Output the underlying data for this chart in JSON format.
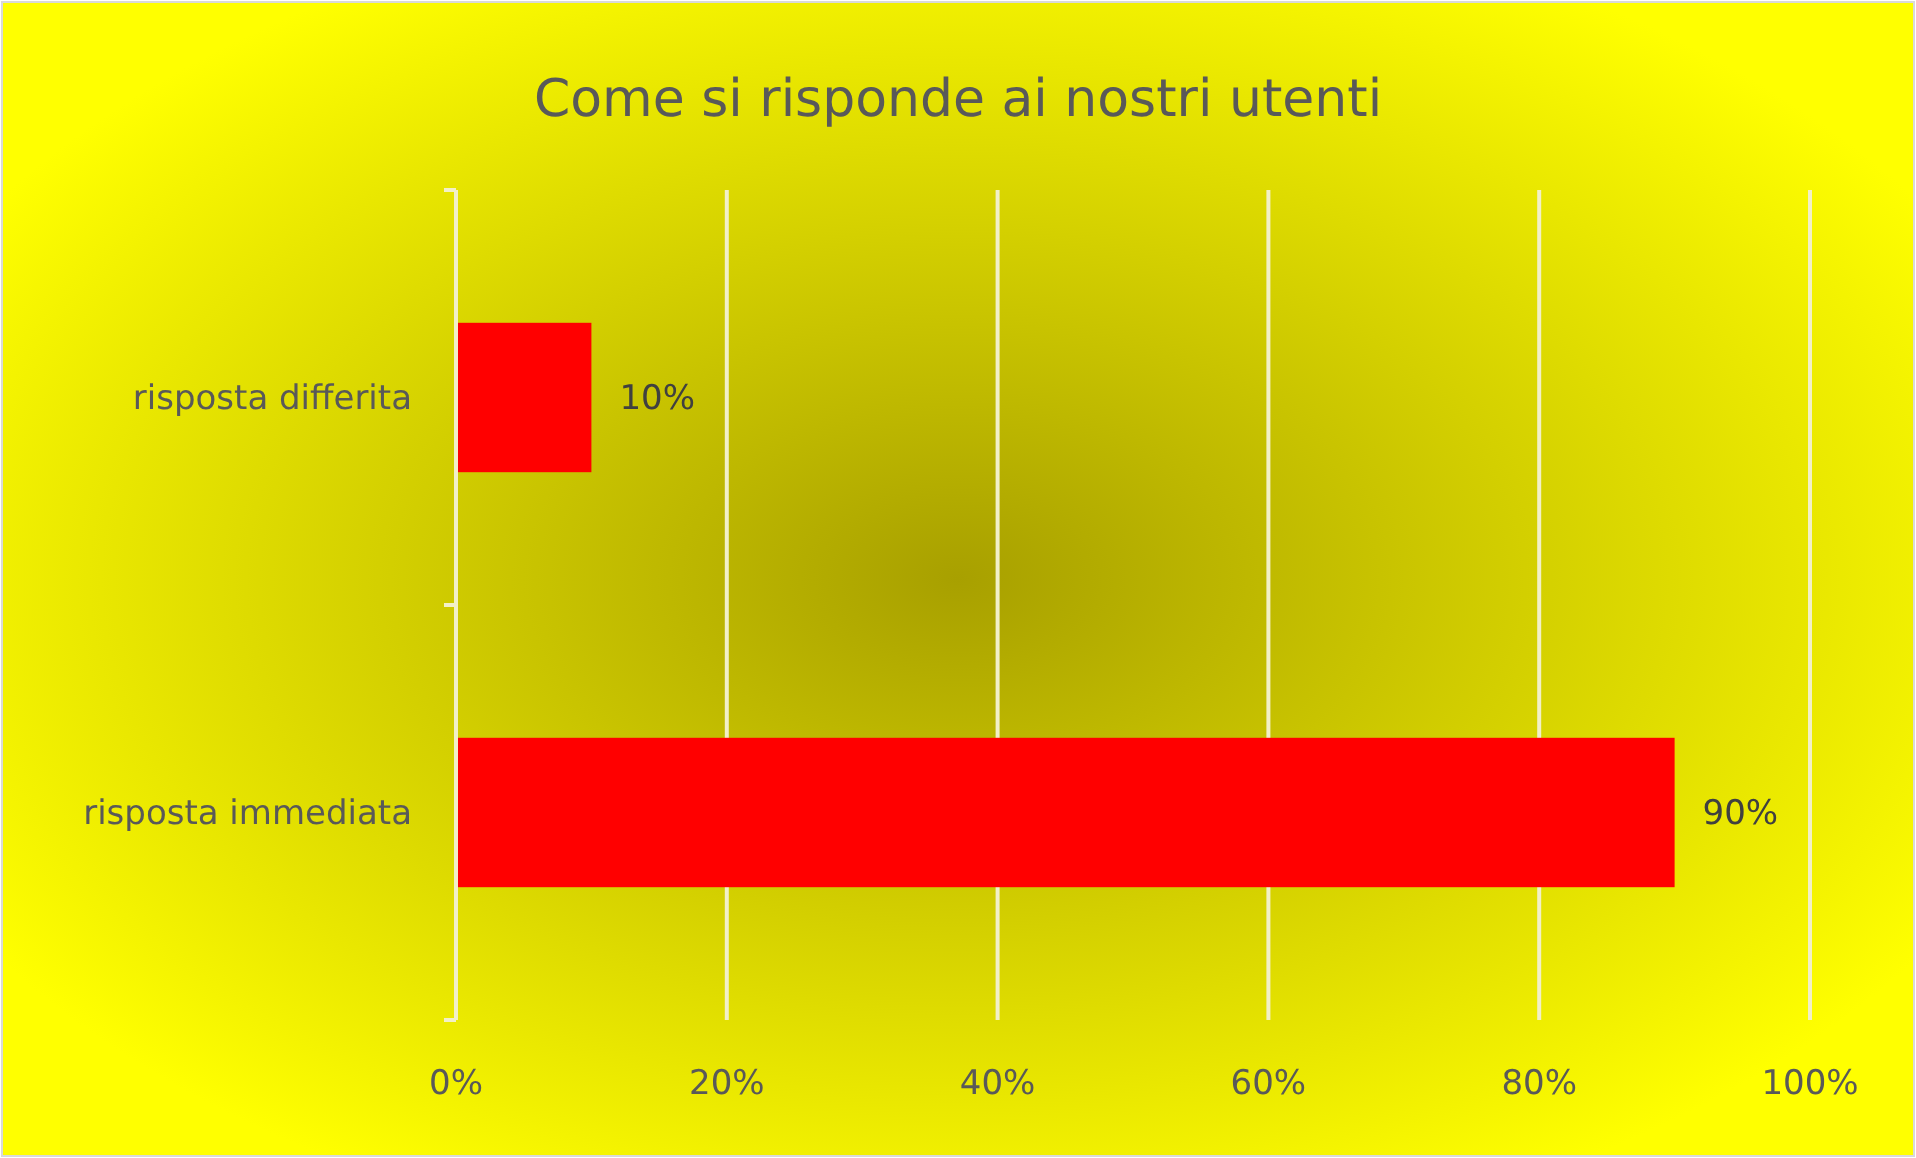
{
  "chart_data": {
    "type": "bar",
    "title": "Come si risponde ai nostri utenti",
    "orientation": "horizontal",
    "categories": [
      "risposta differita",
      "risposta immediata"
    ],
    "values": [
      10,
      90
    ],
    "color": "#ff0000",
    "value_labels": [
      "10%",
      "90%"
    ],
    "xlim": [
      0,
      100
    ],
    "xticks": [
      {
        "value": 0,
        "label": "0%"
      },
      {
        "value": 20,
        "label": "20%"
      },
      {
        "value": 40,
        "label": "40%"
      },
      {
        "value": 60,
        "label": "60%"
      },
      {
        "value": 80,
        "label": "80%"
      },
      {
        "value": 100,
        "label": "100%"
      }
    ],
    "grid": "x"
  }
}
